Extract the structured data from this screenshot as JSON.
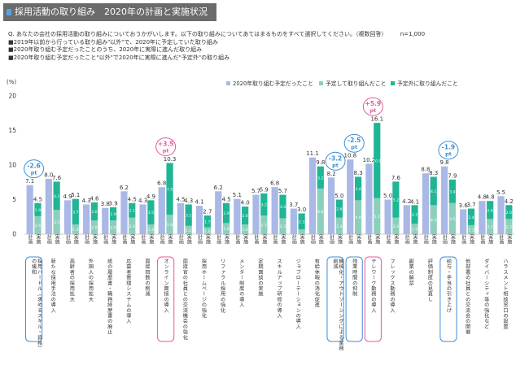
{
  "header": {
    "title": "採用活動の取り組み　2020年の計画と実施状況",
    "question": "Q.  あなたの会社の採用活動の取り組みについておうかがいします。以下の取り組みについてあてはまるものをすべて選択してください。（複数回答）",
    "n": "n=1,000",
    "notes": [
      "■2019年以前から行っている取り組み\"以外\"で、2020年に予定していた取り組み",
      "■2020年取り組む予定だったことのうち、2020年に実際に進んだ取り組み",
      "■2020年取り組む予定だったこと\"以外\"で2020年に実際に進んだ\"予定外\"の取り組み"
    ]
  },
  "chart_data": {
    "type": "bar",
    "ylabel": "(%)",
    "ylim": [
      0,
      20
    ],
    "yticks": [
      "0",
      "5",
      "10",
      "15",
      "20"
    ],
    "legend": [
      "2020年取り組む予定だったこと",
      "予定して取り組んだこと",
      "予定外に取り組んだこと"
    ],
    "colors": {
      "plan": "#a9b8e6",
      "planned_done": "#8ccfbd",
      "unplanned": "#1fb595"
    },
    "plan_label": "計画",
    "impl_label": "実施",
    "categories": [
      {
        "label": "採用ハードル（求めるスキル・資格）の緩和",
        "plan": 7.1,
        "done": 2.6,
        "unplanned": 1.9,
        "total": 4.5,
        "diff": "-2.6",
        "highlight": "blue"
      },
      {
        "label": "新たな採用手法の導入",
        "plan": 8.0,
        "done": 3.5,
        "unplanned": 4.1,
        "total": 7.6
      },
      {
        "label": "高齢者の採用拡大",
        "plan": 4.9,
        "done": 1.4,
        "unplanned": 3.7,
        "total": 5.1
      },
      {
        "label": "外国人の採用拡大",
        "plan": 4.3,
        "done": 2.0,
        "unplanned": 2.6,
        "total": 4.6
      },
      {
        "label": "紙の履歴書・職務経歴書の廃止",
        "plan": 3.8,
        "done": 2.0,
        "unplanned": 1.9,
        "total": 3.9
      },
      {
        "label": "応募者管理システムの導入",
        "plan": 6.2,
        "done": 2.4,
        "unplanned": 2.1,
        "total": 4.5
      },
      {
        "label": "面接回数の削減",
        "plan": 4.3,
        "done": 1.4,
        "unplanned": 3.5,
        "total": 4.9
      },
      {
        "label": "オンライン面接の導入",
        "plan": 6.8,
        "done": 2.8,
        "unplanned": 7.5,
        "total": 10.3,
        "diff": "+3.5",
        "highlight": "pink"
      },
      {
        "label": "面接官の社員との交流機会の強化",
        "plan": 4.5,
        "done": 1.2,
        "unplanned": 3.1,
        "total": 4.3
      },
      {
        "label": "採用ホームページの強化",
        "plan": 4.1,
        "done": 1.0,
        "unplanned": 1.7,
        "total": 2.7
      },
      {
        "label": "リファラル採用の強化",
        "plan": 6.2,
        "done": 1.6,
        "unplanned": 2.9,
        "total": 4.5
      },
      {
        "label": "メンター制度の導入",
        "plan": 5.1,
        "done": 1.4,
        "unplanned": 2.6,
        "total": 4.0
      },
      {
        "label": "定期面談の実施",
        "plan": 5.7,
        "done": 2.7,
        "unplanned": 3.2,
        "total": 5.9
      },
      {
        "label": "スキルアップ研修の導入",
        "plan": 6.8,
        "done": 2.3,
        "unplanned": 3.4,
        "total": 5.7
      },
      {
        "label": "ジョブローテーションの導入",
        "plan": 3.7,
        "done": 0.7,
        "unplanned": 2.3,
        "total": 3.0
      },
      {
        "label": "有給休暇の消化促進",
        "plan": 11.1,
        "done": 6.6,
        "unplanned": 3.2,
        "total": 9.8
      },
      {
        "label": "機械化・アウトソーシングによる業務削減",
        "plan": 8.2,
        "done": 2.4,
        "unplanned": 2.6,
        "total": 5.0,
        "diff": "-3.2",
        "highlight": "blue"
      },
      {
        "label": "残業時間の抑制",
        "plan": 10.8,
        "done": 4.9,
        "unplanned": 3.4,
        "total": 8.3,
        "diff": "-2.5",
        "highlight": "blue"
      },
      {
        "label": "テレワーク勤務の導入",
        "plan": 10.2,
        "done": 5.2,
        "unplanned": 10.9,
        "total": 16.1,
        "diff": "+5.9",
        "highlight": "pink"
      },
      {
        "label": "フレックス勤務の導入",
        "plan": 5.0,
        "done": 2.4,
        "unplanned": 5.2,
        "total": 7.6
      },
      {
        "label": "副業の解禁",
        "plan": 4.2,
        "done": 1.5,
        "unplanned": 2.7,
        "total": 4.1
      },
      {
        "label": "評価制度の見直し",
        "plan": 8.8,
        "done": 4.2,
        "unplanned": 4.1,
        "total": 8.3
      },
      {
        "label": "給与・手当の引き上げ",
        "plan": 9.8,
        "done": 4.5,
        "unplanned": 3.4,
        "total": 7.9,
        "diff": "-1.9",
        "highlight": "blue"
      },
      {
        "label": "他部署の社員との交流会の開催",
        "plan": 3.6,
        "done": 1.3,
        "unplanned": 2.4,
        "total": 3.7
      },
      {
        "label": "ダイバーシティ等の強化など",
        "plan": 4.8,
        "done": 2.2,
        "unplanned": 2.6,
        "total": 4.8
      },
      {
        "label": "ハラスメント相談窓口の設置",
        "plan": 5.5,
        "done": 2.2,
        "unplanned": 2.0,
        "total": 4.2
      }
    ]
  }
}
